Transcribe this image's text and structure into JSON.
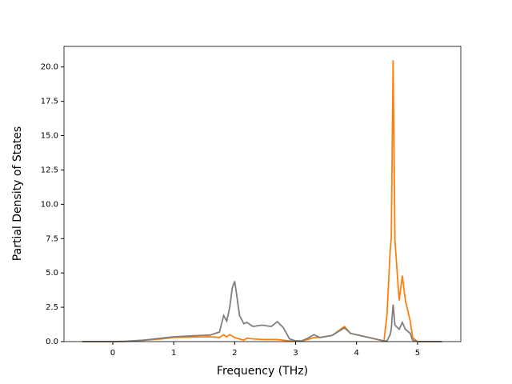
{
  "chart_data": {
    "type": "line",
    "x_label": "Frequency (THz)",
    "y_label": "Partial Density of States",
    "x": [
      -0.5,
      0,
      0.2,
      0.5,
      0.8,
      1.0,
      1.3,
      1.6,
      1.75,
      1.82,
      1.87,
      1.92,
      1.96,
      2.0,
      2.03,
      2.08,
      2.15,
      2.2,
      2.3,
      2.45,
      2.6,
      2.7,
      2.8,
      2.9,
      3.0,
      3.1,
      3.2,
      3.3,
      3.4,
      3.6,
      3.8,
      3.9,
      4.1,
      4.3,
      4.45,
      4.5,
      4.55,
      4.57,
      4.6,
      4.63,
      4.7,
      4.75,
      4.8,
      4.88,
      4.92,
      5.0,
      5.4
    ],
    "series": [
      {
        "color": "#ff7f0e",
        "values": [
          0,
          0,
          0.02,
          0.1,
          0.2,
          0.3,
          0.33,
          0.35,
          0.3,
          0.5,
          0.35,
          0.5,
          0.4,
          0.3,
          0.25,
          0.2,
          0.1,
          0.25,
          0.2,
          0.15,
          0.15,
          0.15,
          0.1,
          0.05,
          0.05,
          0.05,
          0.15,
          0.3,
          0.3,
          0.45,
          1.1,
          0.6,
          0.4,
          0.2,
          0.05,
          2.0,
          6.5,
          7.5,
          20.5,
          7.3,
          3.0,
          4.8,
          3.0,
          1.5,
          0.3,
          0,
          0
        ]
      },
      {
        "color": "#7f7f7f",
        "values": [
          0,
          0,
          0.02,
          0.1,
          0.25,
          0.35,
          0.42,
          0.48,
          0.7,
          1.9,
          1.5,
          2.5,
          3.9,
          4.4,
          3.5,
          1.9,
          1.3,
          1.4,
          1.1,
          1.2,
          1.1,
          1.45,
          1.0,
          0.2,
          0.05,
          0.05,
          0.25,
          0.5,
          0.3,
          0.45,
          1.0,
          0.6,
          0.4,
          0.2,
          0.05,
          0.05,
          0.5,
          0.9,
          2.7,
          1.2,
          0.9,
          1.4,
          0.9,
          0.6,
          0.1,
          0,
          0
        ]
      }
    ],
    "xlim": [
      -0.8,
      5.71
    ],
    "ylim": [
      0,
      21.5
    ],
    "xticks": [
      0,
      1,
      2,
      3,
      4,
      5
    ],
    "yticks": [
      {
        "value": 0,
        "label": "0.0"
      },
      {
        "value": 2.5,
        "label": "2.5"
      },
      {
        "value": 5,
        "label": "5.0"
      },
      {
        "value": 7.5,
        "label": "7.5"
      },
      {
        "value": 10,
        "label": "10.0"
      },
      {
        "value": 12.5,
        "label": "12.5"
      },
      {
        "value": 15,
        "label": "15.0"
      },
      {
        "value": 17.5,
        "label": "17.5"
      },
      {
        "value": 20,
        "label": "20.0"
      }
    ],
    "grid": false
  }
}
